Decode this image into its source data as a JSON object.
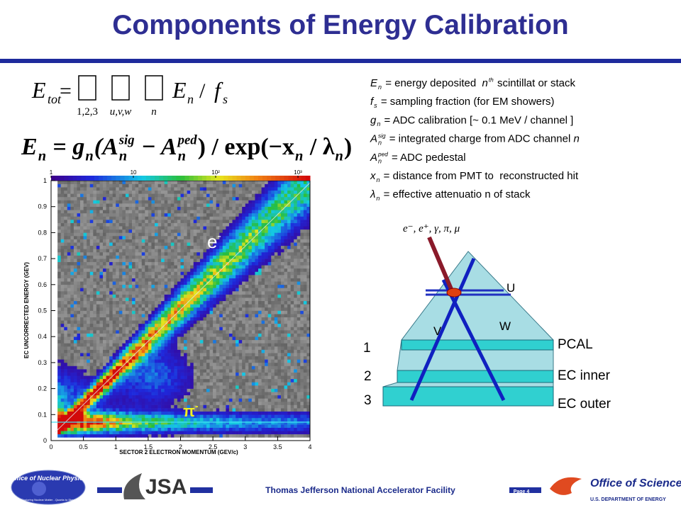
{
  "header": {
    "title": "Components of Energy Calibration"
  },
  "equations": [
    {
      "lhs": "E",
      "lhs_sub": "tot",
      "eq": "=",
      "under": [
        "1,2,3",
        "u,v,w",
        "n"
      ],
      "term": "E",
      "term_sub": "n",
      "slash": "/",
      "f": "f",
      "f_sub": "s"
    },
    {
      "tokens": [
        {
          "t": "E",
          "i": true
        },
        {
          "sub": "n"
        },
        {
          "t": " = ",
          "i": false
        },
        {
          "t": "g",
          "i": true
        },
        {
          "sub": "n"
        },
        {
          "t": "(A",
          "i": true
        },
        {
          "sup": "sig",
          "sub": "n"
        },
        {
          "t": " − A",
          "i": true
        },
        {
          "sup": "ped",
          "sub": "n"
        },
        {
          "t": ") / exp(−x",
          "i": false
        },
        {
          "sub": "n"
        },
        {
          "t": " / λ",
          "i": false
        },
        {
          "sub": "n"
        },
        {
          "t": ")",
          "i": false
        }
      ]
    }
  ],
  "definitions": [
    {
      "tokens": [
        {
          "t": "E",
          "i": true
        },
        {
          "sub": "n"
        },
        {
          "t": " = energy deposited  ",
          "i": false
        },
        {
          "t": "n",
          "i": true
        },
        {
          "sup": "th"
        },
        {
          "t": " scintillat or stack",
          "i": false
        }
      ]
    },
    {
      "tokens": [
        {
          "t": "f",
          "i": true
        },
        {
          "sub": "s"
        },
        {
          "t": " = sampling fraction (for EM showers)",
          "i": false
        }
      ]
    },
    {
      "tokens": [
        {
          "t": "g",
          "i": true
        },
        {
          "sub": "n"
        },
        {
          "t": " = ADC calibration [~ 0.1 MeV / channel ]",
          "i": false
        }
      ]
    },
    {
      "tokens": [
        {
          "t": "A",
          "i": true
        },
        {
          "sup": "sig",
          "sub": "n"
        },
        {
          "t": " = integrated charge from ADC channel ",
          "i": false
        },
        {
          "t": "n",
          "i": true
        }
      ]
    },
    {
      "tokens": [
        {
          "t": "A",
          "i": true
        },
        {
          "sup": "ped",
          "sub": "n"
        },
        {
          "t": " = ADC pedestal",
          "i": false
        }
      ]
    },
    {
      "tokens": [
        {
          "t": "x",
          "i": true
        },
        {
          "sub": "n"
        },
        {
          "t": " = distance from PMT to  reconstructed hit",
          "i": false
        }
      ]
    },
    {
      "tokens": [
        {
          "t": "λ",
          "i": true
        },
        {
          "sub": "n"
        },
        {
          "t": " = effective attenuatio n of stack",
          "i": false
        }
      ]
    }
  ],
  "plot": {
    "x_label": "SECTOR 2 ELECTRON MOMENTUM (GEV/c)",
    "y_label": "EC UNCORRECTED ENERGY (GEV)",
    "xlim": [
      0,
      4
    ],
    "ylim": [
      0,
      1
    ],
    "xticks": [
      0,
      0.5,
      1,
      1.5,
      2,
      2.5,
      3,
      3.5,
      4
    ],
    "yticks": [
      0,
      0.1,
      0.2,
      0.3,
      0.4,
      0.5,
      0.6,
      0.7,
      0.8,
      0.9,
      1
    ],
    "colorbar": {
      "lim": [
        1,
        1400
      ],
      "log": true,
      "ticks": [
        1,
        10,
        {
          "value": 100,
          "label": "10²"
        },
        {
          "value": 1000,
          "label": "10³"
        }
      ]
    },
    "annotations": [
      {
        "text": "e",
        "sup": "-"
      },
      {
        "text": "π",
        "sup": "-"
      }
    ]
  },
  "detector": {
    "particles": "e⁻, e⁺, γ, π, μ",
    "views": [
      "U",
      "V",
      "W"
    ],
    "layers": [
      "1",
      "2",
      "3"
    ],
    "names": [
      "PCAL",
      "EC inner",
      "EC outer"
    ]
  },
  "footer": {
    "lab": "Thomas Jefferson National Accelerator Facility",
    "page": "Page 4",
    "jsa": "JSA",
    "np_logo": "Office of Nuclear Physics",
    "np_tagline": "Exploring Nuclear Matter - Quarks to Stars",
    "science": "Office of Science",
    "doe": "U.S. DEPARTMENT OF ENERGY"
  }
}
